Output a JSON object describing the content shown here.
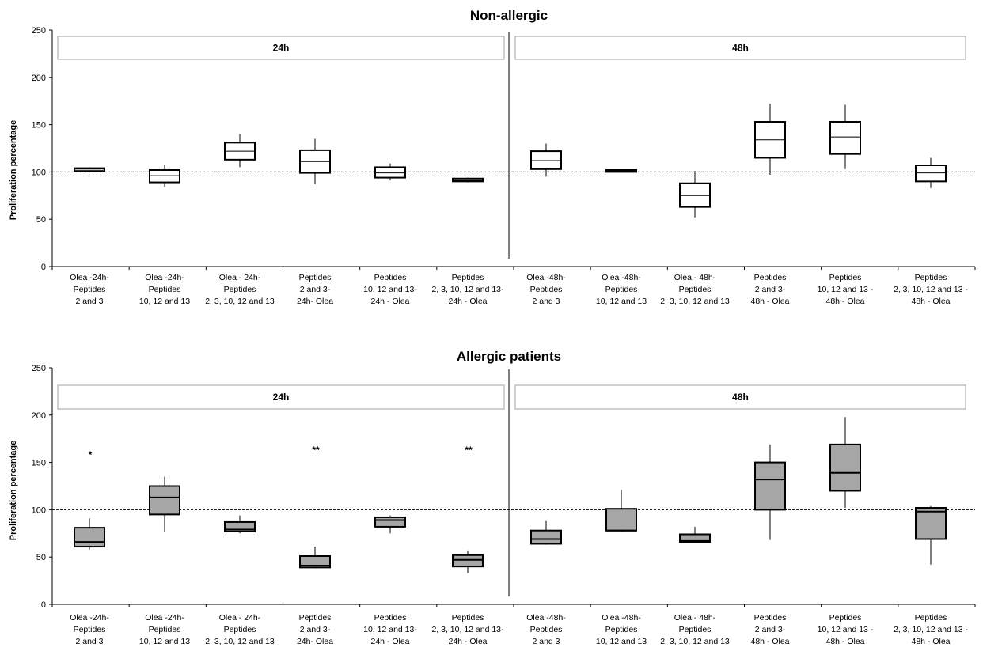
{
  "chart_data": [
    {
      "type": "box",
      "title": "Non-allergic",
      "ylabel": "Proliferation percentage",
      "ylim": [
        0,
        250
      ],
      "yticks": [
        0,
        50,
        100,
        150,
        200,
        250
      ],
      "reference_line": 100,
      "fill": "#ffffff",
      "panels": [
        {
          "label": "24h",
          "categories": [
            [
              "Olea -24h-",
              "Peptides",
              "2 and 3"
            ],
            [
              "Olea -24h-",
              "Peptides",
              "10, 12 and 13"
            ],
            [
              "Olea - 24h-",
              "Peptides",
              "2, 3, 10, 12 and 13"
            ],
            [
              "Peptides",
              "2 and 3-",
              "24h- Olea"
            ],
            [
              "Peptides",
              "10, 12 and 13-",
              "24h - Olea"
            ],
            [
              "Peptides",
              "2, 3, 10, 12 and 13-",
              "24h - Olea"
            ]
          ],
          "boxes": [
            {
              "min": 101,
              "q1": 101,
              "median": 103,
              "q3": 104,
              "max": 105
            },
            {
              "min": 84,
              "q1": 89,
              "median": 96,
              "q3": 102,
              "max": 108
            },
            {
              "min": 105,
              "q1": 113,
              "median": 122,
              "q3": 131,
              "max": 140
            },
            {
              "min": 87,
              "q1": 99,
              "median": 111,
              "q3": 123,
              "max": 135
            },
            {
              "min": 91,
              "q1": 94,
              "median": 99,
              "q3": 105,
              "max": 109
            },
            {
              "min": 89,
              "q1": 90,
              "median": 91,
              "q3": 93,
              "max": 94
            }
          ]
        },
        {
          "label": "48h",
          "categories": [
            [
              "Olea -48h-",
              "Peptides",
              "2 and 3"
            ],
            [
              "Olea -48h-",
              "Peptides",
              "10, 12 and 13"
            ],
            [
              "Olea - 48h-",
              "Peptides",
              "2, 3, 10, 12 and 13"
            ],
            [
              "Peptides",
              "2 and 3-",
              "48h - Olea"
            ],
            [
              "Peptides",
              "10, 12 and 13 -",
              "48h - Olea"
            ],
            [
              "Peptides",
              "2, 3, 10, 12 and 13 -",
              "48h - Olea"
            ]
          ],
          "boxes": [
            {
              "min": 95,
              "q1": 103,
              "median": 112,
              "q3": 122,
              "max": 130
            },
            {
              "min": 100,
              "q1": 100,
              "median": 101,
              "q3": 102,
              "max": 102
            },
            {
              "min": 52,
              "q1": 63,
              "median": 75,
              "q3": 88,
              "max": 101
            },
            {
              "min": 97,
              "q1": 115,
              "median": 134,
              "q3": 153,
              "max": 172
            },
            {
              "min": 103,
              "q1": 119,
              "median": 137,
              "q3": 153,
              "max": 171
            },
            {
              "min": 83,
              "q1": 90,
              "median": 99,
              "q3": 107,
              "max": 115
            }
          ]
        }
      ]
    },
    {
      "type": "box",
      "title": "Allergic patients",
      "ylabel": "Proliferation percentage",
      "ylim": [
        0,
        250
      ],
      "yticks": [
        0,
        50,
        100,
        150,
        200,
        250
      ],
      "reference_line": 100,
      "fill": "#a6a6a6",
      "panels": [
        {
          "label": "24h",
          "categories": [
            [
              "Olea -24h-",
              "Peptides",
              "2 and 3"
            ],
            [
              "Olea -24h-",
              "Peptides",
              "10, 12 and 13"
            ],
            [
              "Olea - 24h-",
              "Peptides",
              "2, 3, 10, 12 and 13"
            ],
            [
              "Peptides",
              "2 and 3-",
              "24h- Olea"
            ],
            [
              "Peptides",
              "10, 12 and 13-",
              "24h - Olea"
            ],
            [
              "Peptides",
              "2, 3, 10, 12 and 13-",
              "24h - Olea"
            ]
          ],
          "boxes": [
            {
              "min": 58,
              "q1": 61,
              "median": 66,
              "q3": 81,
              "max": 91,
              "marker": "*",
              "marker_value": 159
            },
            {
              "min": 77,
              "q1": 95,
              "median": 113,
              "q3": 125,
              "max": 135
            },
            {
              "min": 75,
              "q1": 77,
              "median": 79,
              "q3": 87,
              "max": 94
            },
            {
              "min": 38,
              "q1": 39,
              "median": 41,
              "q3": 51,
              "max": 61,
              "marker": "**",
              "marker_value": 164
            },
            {
              "min": 75,
              "q1": 82,
              "median": 89,
              "q3": 92,
              "max": 94
            },
            {
              "min": 33,
              "q1": 40,
              "median": 47,
              "q3": 52,
              "max": 57,
              "marker": "**",
              "marker_value": 164
            }
          ]
        },
        {
          "label": "48h",
          "categories": [
            [
              "Olea -48h-",
              "Peptides",
              "2 and 3"
            ],
            [
              "Olea -48h-",
              "Peptides",
              "10, 12 and 13"
            ],
            [
              "Olea - 48h-",
              "Peptides",
              "2, 3, 10, 12 and 13"
            ],
            [
              "Peptides",
              "2 and 3-",
              "48h - Olea"
            ],
            [
              "Peptides",
              "10, 12 and 13 -",
              "48h - Olea"
            ],
            [
              "Peptides",
              "2, 3, 10, 12 and 13 -",
              "48h - Olea"
            ]
          ],
          "boxes": [
            {
              "min": 63,
              "q1": 64,
              "median": 69,
              "q3": 78,
              "max": 88
            },
            {
              "min": 77,
              "q1": 78,
              "median": 78,
              "q3": 101,
              "max": 121
            },
            {
              "min": 66,
              "q1": 66,
              "median": 67,
              "q3": 74,
              "max": 82
            },
            {
              "min": 68,
              "q1": 100,
              "median": 132,
              "q3": 150,
              "max": 169
            },
            {
              "min": 102,
              "q1": 120,
              "median": 139,
              "q3": 169,
              "max": 198
            },
            {
              "min": 42,
              "q1": 69,
              "median": 98,
              "q3": 102,
              "max": 104
            }
          ]
        }
      ]
    }
  ]
}
